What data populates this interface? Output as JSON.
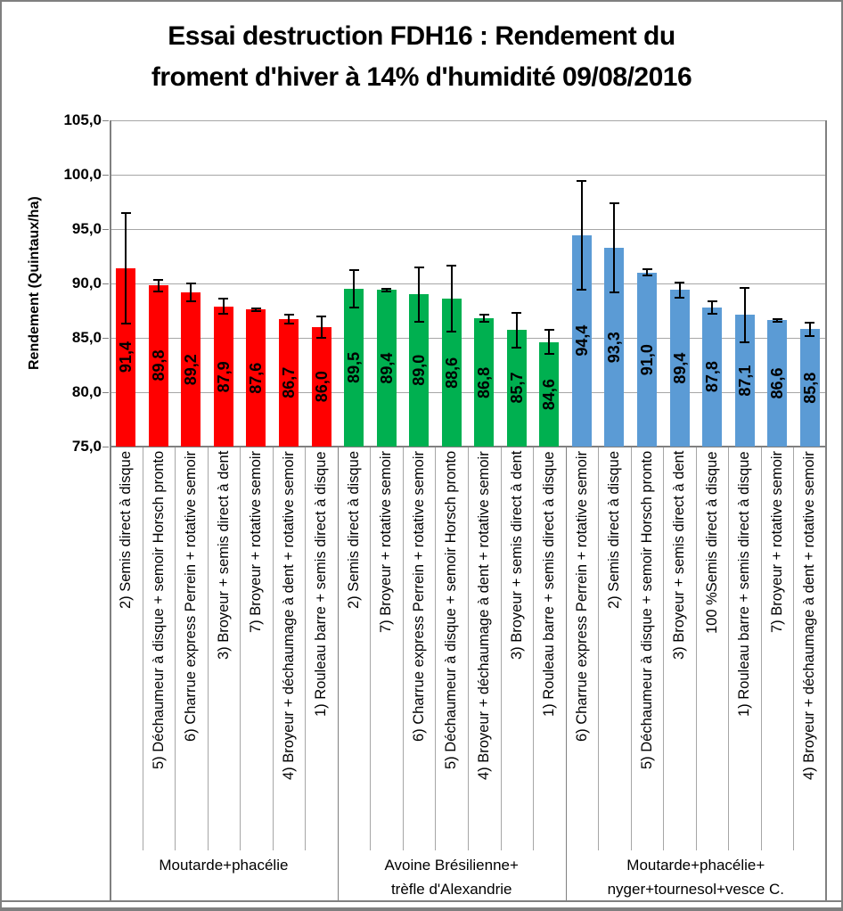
{
  "title": {
    "line1": "Essai destruction FDH16 : Rendement du",
    "line2": "froment d'hiver à 14% d'humidité 09/08/2016"
  },
  "chart_data": {
    "type": "bar",
    "title": "Essai destruction FDH16 : Rendement du froment d'hiver à 14% d'humidité 09/08/2016",
    "xlabel": "",
    "ylabel": "Rendement (Quintaux/ha)",
    "ylim": [
      75,
      105
    ],
    "ytick_step": 5,
    "ytick_labels": [
      "105,0",
      "100,0",
      "95,0",
      "90,0",
      "85,0",
      "80,0",
      "75,0"
    ],
    "grid": true,
    "legend": false,
    "error_bars": true,
    "decimal_separator": ",",
    "colors": {
      "group1": "#FF0000",
      "group2": "#00B050",
      "group3": "#5B9BD5",
      "gridline": "#A6A6A6",
      "axis": "#808080",
      "error_bar": "#000000"
    },
    "groups": [
      {
        "name": "Moutarde+phacélie",
        "name_lines": [
          "Moutarde+phacélie"
        ],
        "color": "#FF0000",
        "bars": [
          {
            "category": "2) Semis direct à disque",
            "value": 91.4,
            "label": "91,4",
            "error": 5.1
          },
          {
            "category": "5) Déchaumeur à disque + semoir Horsch pronto",
            "value": 89.8,
            "label": "89,8",
            "error": 0.5
          },
          {
            "category": "6) Charrue express Perrein + rotative semoir",
            "value": 89.2,
            "label": "89,2",
            "error": 0.8
          },
          {
            "category": "3) Broyeur + semis direct à dent",
            "value": 87.9,
            "label": "87,9",
            "error": 0.7
          },
          {
            "category": "7) Broyeur + rotative semoir",
            "value": 87.6,
            "label": "87,6",
            "error": 0.1
          },
          {
            "category": "4) Broyeur + déchaumage à dent + rotative semoir",
            "value": 86.7,
            "label": "86,7",
            "error": 0.4
          },
          {
            "category": "1) Rouleau barre + semis direct à disque",
            "value": 86.0,
            "label": "86,0",
            "error": 1.0
          }
        ]
      },
      {
        "name": "Avoine Brésilienne+ trèfle d'Alexandrie",
        "name_lines": [
          "Avoine Brésilienne+",
          "trèfle d'Alexandrie"
        ],
        "color": "#00B050",
        "bars": [
          {
            "category": "2) Semis direct à disque",
            "value": 89.5,
            "label": "89,5",
            "error": 1.7
          },
          {
            "category": "7) Broyeur + rotative semoir",
            "value": 89.4,
            "label": "89,4",
            "error": 0.1
          },
          {
            "category": "6) Charrue express Perrein + rotative semoir",
            "value": 89.0,
            "label": "89,0",
            "error": 2.5
          },
          {
            "category": "5) Déchaumeur à disque + semoir Horsch pronto",
            "value": 88.6,
            "label": "88,6",
            "error": 3.0
          },
          {
            "category": "4) Broyeur + déchaumage à dent + rotative semoir",
            "value": 86.8,
            "label": "86,8",
            "error": 0.3
          },
          {
            "category": "3) Broyeur + semis direct à dent",
            "value": 85.7,
            "label": "85,7",
            "error": 1.6
          },
          {
            "category": "1) Rouleau barre + semis direct à disque",
            "value": 84.6,
            "label": "84,6",
            "error": 1.1
          }
        ]
      },
      {
        "name": "Moutarde+phacélie+ nyger+tournesol+vesce C.",
        "name_lines": [
          "Moutarde+phacélie+",
          "nyger+tournesol+vesce C."
        ],
        "color": "#5B9BD5",
        "bars": [
          {
            "category": "6) Charrue express Perrein + rotative semoir",
            "value": 94.4,
            "label": "94,4",
            "error": 5.0
          },
          {
            "category": "2) Semis direct à disque",
            "value": 93.3,
            "label": "93,3",
            "error": 4.1
          },
          {
            "category": "5) Déchaumeur à disque + semoir Horsch pronto",
            "value": 91.0,
            "label": "91,0",
            "error": 0.3
          },
          {
            "category": "3) Broyeur + semis direct à dent",
            "value": 89.4,
            "label": "89,4",
            "error": 0.7
          },
          {
            "category": "100 %Semis direct à disque",
            "value": 87.8,
            "label": "87,8",
            "error": 0.6
          },
          {
            "category": "1) Rouleau barre + semis direct à disque",
            "value": 87.1,
            "label": "87,1",
            "error": 2.5
          },
          {
            "category": "7) Broyeur + rotative semoir",
            "value": 86.6,
            "label": "86,6",
            "error": 0.1
          },
          {
            "category": "4) Broyeur + déchaumage à dent + rotative semoir",
            "value": 85.8,
            "label": "85,8",
            "error": 0.6
          }
        ]
      }
    ]
  }
}
